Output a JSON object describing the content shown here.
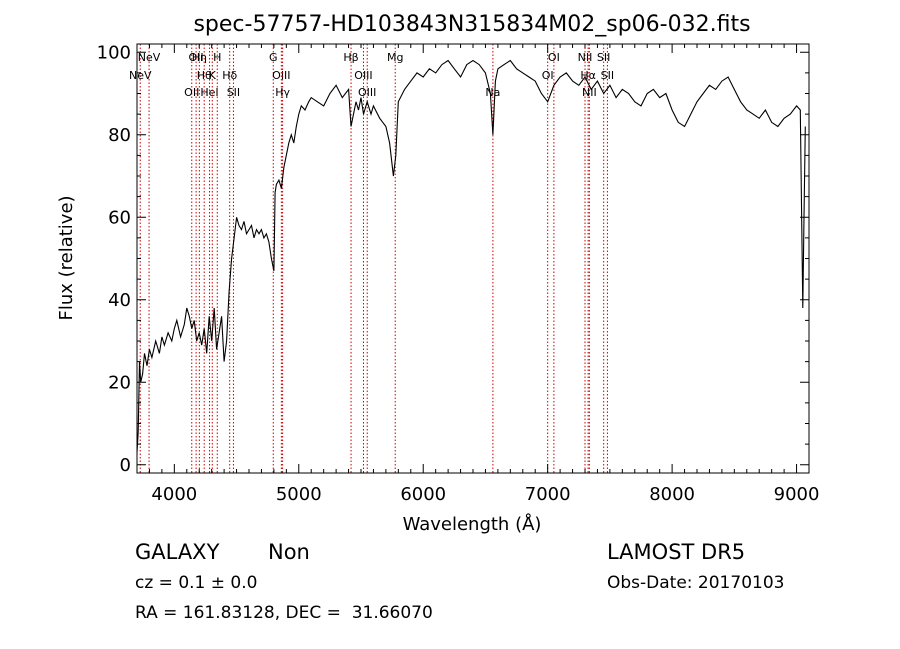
{
  "chart_data": {
    "type": "line",
    "title": "spec-57757-HD103843N315834M02_sp06-032.fits",
    "xlabel": "Wavelength (Å)",
    "ylabel": "Flux (relative)",
    "xlim": [
      3700,
      9100
    ],
    "ylim": [
      -2,
      102
    ],
    "xticks": [
      4000,
      5000,
      6000,
      7000,
      8000,
      9000
    ],
    "yticks": [
      0,
      20,
      40,
      60,
      80,
      100
    ],
    "grid": false,
    "series": [
      {
        "x": [
          3700,
          3710,
          3720,
          3730,
          3745,
          3760,
          3780,
          3800,
          3820,
          3850,
          3880,
          3900,
          3920,
          3950,
          3980,
          4000,
          4020,
          4050,
          4080,
          4100,
          4120,
          4140,
          4160,
          4180,
          4200,
          4220,
          4240,
          4260,
          4280,
          4300,
          4320,
          4340,
          4360,
          4380,
          4400,
          4420,
          4440,
          4460,
          4480,
          4500,
          4520,
          4540,
          4560,
          4580,
          4600,
          4620,
          4640,
          4660,
          4680,
          4700,
          4720,
          4740,
          4760,
          4780,
          4800,
          4810,
          4820,
          4840,
          4860,
          4880,
          4900,
          4920,
          4940,
          4960,
          4980,
          5000,
          5020,
          5050,
          5080,
          5100,
          5150,
          5200,
          5250,
          5300,
          5350,
          5400,
          5420,
          5440,
          5460,
          5480,
          5500,
          5520,
          5550,
          5580,
          5600,
          5650,
          5700,
          5730,
          5760,
          5780,
          5800,
          5850,
          5900,
          5950,
          6000,
          6050,
          6100,
          6150,
          6200,
          6250,
          6300,
          6350,
          6400,
          6450,
          6500,
          6540,
          6560,
          6580,
          6600,
          6650,
          6700,
          6750,
          6800,
          6850,
          6900,
          6950,
          7000,
          7050,
          7100,
          7150,
          7200,
          7250,
          7300,
          7350,
          7400,
          7450,
          7500,
          7550,
          7600,
          7650,
          7700,
          7750,
          7800,
          7850,
          7900,
          7950,
          8000,
          8050,
          8100,
          8150,
          8200,
          8250,
          8300,
          8350,
          8400,
          8450,
          8500,
          8550,
          8600,
          8650,
          8700,
          8750,
          8800,
          8850,
          8900,
          8950,
          9000,
          9030,
          9050,
          9060,
          9070
        ],
        "y": [
          3,
          8,
          25,
          20,
          22,
          27,
          24,
          28,
          26,
          30,
          27,
          31,
          29,
          32,
          30,
          33,
          35,
          31,
          34,
          38,
          36,
          33,
          35,
          30,
          32,
          29,
          33,
          27,
          36,
          30,
          38,
          28,
          32,
          36,
          25,
          30,
          42,
          50,
          55,
          60,
          58,
          57,
          59,
          56,
          57,
          58,
          55,
          57,
          56,
          57,
          55,
          56,
          54,
          50,
          47,
          66,
          68,
          69,
          67,
          72,
          75,
          78,
          80,
          78,
          82,
          85,
          87,
          86,
          88,
          89,
          88,
          87,
          90,
          92,
          89,
          91,
          82,
          85,
          88,
          86,
          89,
          85,
          88,
          85,
          87,
          84,
          82,
          78,
          70,
          75,
          88,
          91,
          93,
          95,
          94,
          96,
          95,
          97,
          98,
          96,
          94,
          97,
          98,
          97,
          95,
          90,
          80,
          93,
          96,
          97,
          98,
          96,
          95,
          94,
          93,
          90,
          88,
          92,
          94,
          95,
          93,
          92,
          94,
          91,
          93,
          90,
          92,
          89,
          91,
          90,
          88,
          87,
          90,
          91,
          89,
          90,
          86,
          83,
          82,
          85,
          88,
          90,
          92,
          91,
          93,
          94,
          91,
          88,
          86,
          85,
          84,
          86,
          83,
          82,
          84,
          85,
          87,
          86,
          38,
          60,
          82
        ]
      }
    ],
    "lines": [
      {
        "label": "NeV",
        "x": 3726,
        "row": 1
      },
      {
        "label": "NeV",
        "x": 3797,
        "row": 0
      },
      {
        "label": "OII",
        "x": 4140,
        "row": 2
      },
      {
        "label": "OII",
        "x": 4175,
        "row": 0
      },
      {
        "label": "Hη",
        "x": 4201,
        "row": 0
      },
      {
        "label": "Hθ",
        "x": 4240,
        "row": 1
      },
      {
        "label": "HeI",
        "x": 4283,
        "row": 2
      },
      {
        "label": "K",
        "x": 4305,
        "row": 1
      },
      {
        "label": "H",
        "x": 4345,
        "row": 0
      },
      {
        "label": "Hδ",
        "x": 4445,
        "row": 1
      },
      {
        "label": "SII",
        "x": 4475,
        "row": 2
      },
      {
        "label": "G",
        "x": 4795,
        "row": 0
      },
      {
        "label": "OIII",
        "x": 4860,
        "row": 1
      },
      {
        "label": "Hγ",
        "x": 4870,
        "row": 2
      },
      {
        "label": "Hβ",
        "x": 5420,
        "row": 0
      },
      {
        "label": "OIII",
        "x": 5520,
        "row": 1
      },
      {
        "label": "OIII",
        "x": 5550,
        "row": 2
      },
      {
        "label": "Mg",
        "x": 5775,
        "row": 0
      },
      {
        "label": "Na",
        "x": 6560,
        "row": 2
      },
      {
        "label": "OI",
        "x": 7050,
        "row": 0
      },
      {
        "label": "OI",
        "x": 7000,
        "row": 1
      },
      {
        "label": "NII",
        "x": 7300,
        "row": 0
      },
      {
        "label": "Hα",
        "x": 7325,
        "row": 1
      },
      {
        "label": "NII",
        "x": 7335,
        "row": 2
      },
      {
        "label": "SII",
        "x": 7450,
        "row": 0
      },
      {
        "label": "SII",
        "x": 7480,
        "row": 1
      }
    ]
  },
  "info": {
    "class": "GALAXY",
    "subclass": "Non",
    "survey": "LAMOST DR5",
    "cz": "cz = 0.1 ± 0.0",
    "obs_date": "Obs-Date: 20170103",
    "radec": "RA = 161.83128, DEC =  31.66070"
  },
  "colors": {
    "axis": "#000000",
    "spectrum": "#000000",
    "line_markers": "#cc0000"
  }
}
